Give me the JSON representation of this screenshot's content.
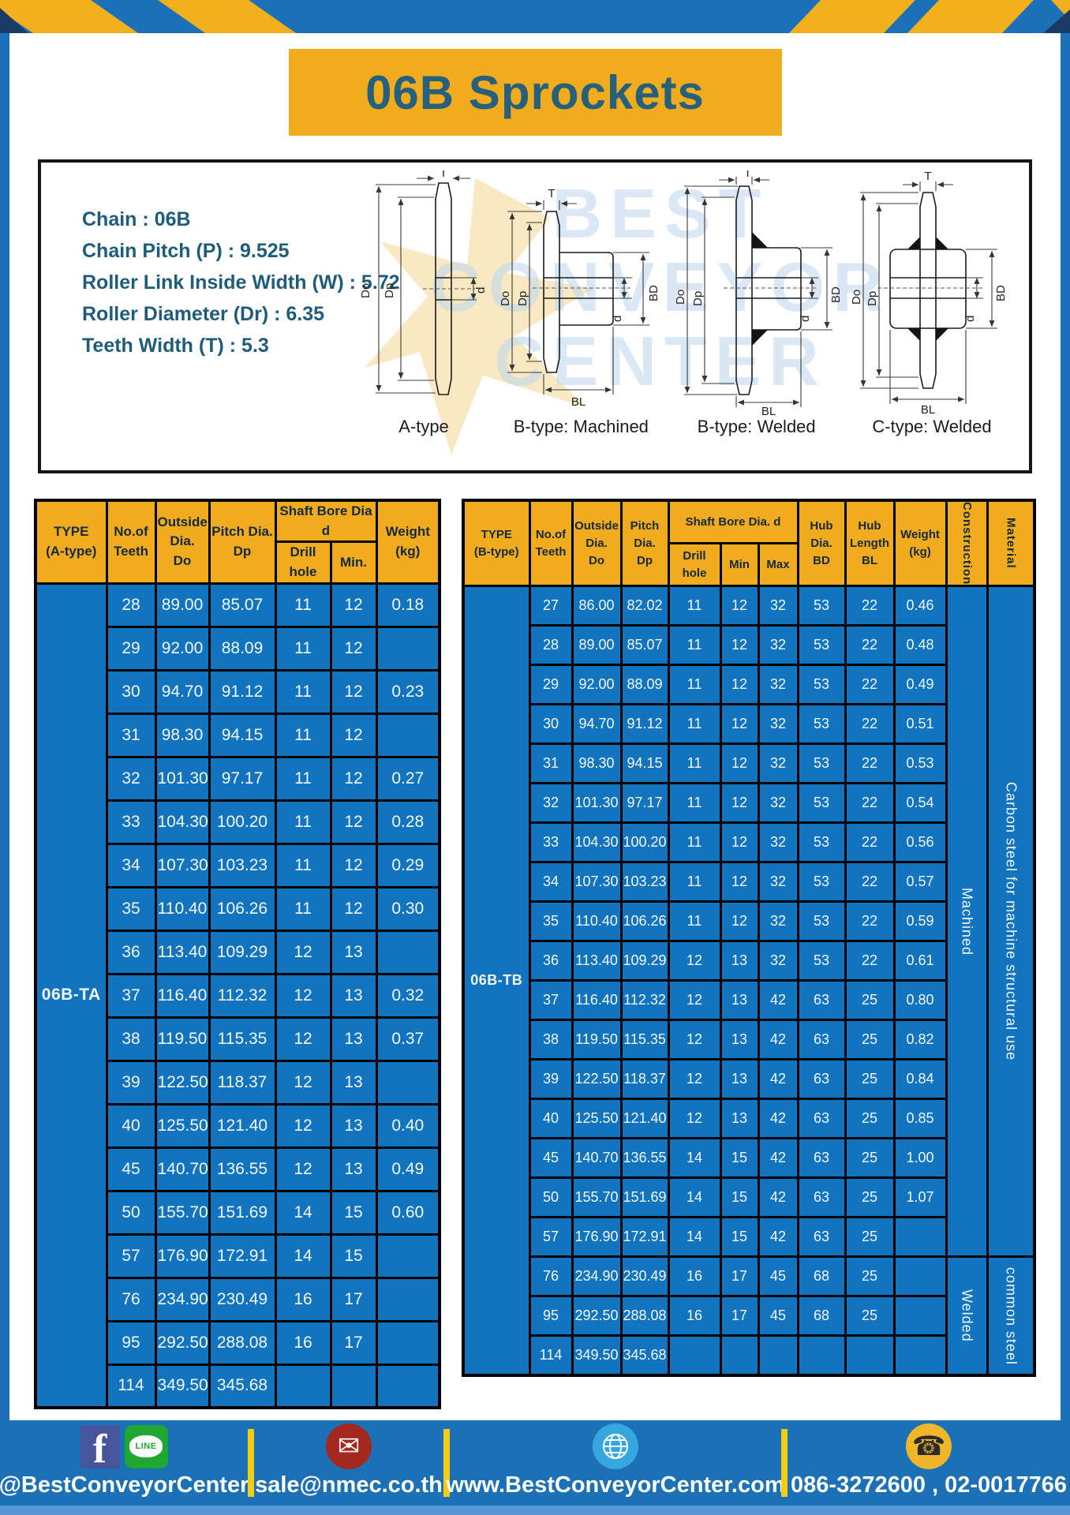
{
  "page": {
    "title": "06B Sprockets"
  },
  "colors": {
    "frame_blue": "#1B70B6",
    "accent_yellow": "#F1AC1D",
    "table_blue": "#1273BE",
    "teal_text": "#26607C"
  },
  "specs": {
    "lines": [
      "Chain : 06B",
      "Chain Pitch (P) : 9.525",
      "Roller Link Inside Width (W) : 5.72",
      "Roller Diameter (Dr) : 6.35",
      "Teeth Width (T) : 5.3"
    ]
  },
  "diagrams": {
    "captions": [
      "A-type",
      "B-type: Machined",
      "B-type: Welded",
      "C-type: Welded"
    ],
    "dim_labels": {
      "t": "T",
      "do_": "Do",
      "dp": "Dp",
      "d": "d",
      "bd": "BD",
      "bl": "BL"
    },
    "watermark": {
      "line1": "BEST",
      "line2": "CONVEYOR",
      "line3": "CENTER"
    }
  },
  "table_a": {
    "header": {
      "type": "TYPE\n(A-type)",
      "teeth": "No.of\nTeeth",
      "outside": "Outside\nDia.\nDo",
      "pitch": "Pitch Dia.\nDp",
      "shaft_bore": "Shaft Bore Dia d",
      "drill": "Drill hole",
      "min": "Min.",
      "weight": "Weight\n(kg)"
    },
    "type_label": "06B-TA",
    "rows": [
      [
        "28",
        "89.00",
        "85.07",
        "11",
        "12",
        "0.18"
      ],
      [
        "29",
        "92.00",
        "88.09",
        "11",
        "12",
        ""
      ],
      [
        "30",
        "94.70",
        "91.12",
        "11",
        "12",
        "0.23"
      ],
      [
        "31",
        "98.30",
        "94.15",
        "11",
        "12",
        ""
      ],
      [
        "32",
        "101.30",
        "97.17",
        "11",
        "12",
        "0.27"
      ],
      [
        "33",
        "104.30",
        "100.20",
        "11",
        "12",
        "0.28"
      ],
      [
        "34",
        "107.30",
        "103.23",
        "11",
        "12",
        "0.29"
      ],
      [
        "35",
        "110.40",
        "106.26",
        "11",
        "12",
        "0.30"
      ],
      [
        "36",
        "113.40",
        "109.29",
        "12",
        "13",
        ""
      ],
      [
        "37",
        "116.40",
        "112.32",
        "12",
        "13",
        "0.32"
      ],
      [
        "38",
        "119.50",
        "115.35",
        "12",
        "13",
        "0.37"
      ],
      [
        "39",
        "122.50",
        "118.37",
        "12",
        "13",
        ""
      ],
      [
        "40",
        "125.50",
        "121.40",
        "12",
        "13",
        "0.40"
      ],
      [
        "45",
        "140.70",
        "136.55",
        "12",
        "13",
        "0.49"
      ],
      [
        "50",
        "155.70",
        "151.69",
        "14",
        "15",
        "0.60"
      ],
      [
        "57",
        "176.90",
        "172.91",
        "14",
        "15",
        ""
      ],
      [
        "76",
        "234.90",
        "230.49",
        "16",
        "17",
        ""
      ],
      [
        "95",
        "292.50",
        "288.08",
        "16",
        "17",
        ""
      ],
      [
        "114",
        "349.50",
        "345.68",
        "",
        "",
        ""
      ]
    ]
  },
  "table_b": {
    "header": {
      "type": "TYPE\n(B-type)",
      "teeth": "No.of\nTeeth",
      "outside": "Outside\nDia.\nDo",
      "pitch": "Pitch\nDia.\nDp",
      "shaft_bore": "Shaft Bore Dia. d",
      "drill": "Drill hole",
      "min": "Min",
      "max": "Max",
      "hub_dia": "Hub\nDia.\nBD",
      "hub_len": "Hub\nLength\nBL",
      "weight": "Weight\n(kg)",
      "construction": "Construction",
      "material": "Material"
    },
    "type_label": "06B-TB",
    "rows": [
      [
        "27",
        "86.00",
        "82.02",
        "11",
        "12",
        "32",
        "53",
        "22",
        "0.46"
      ],
      [
        "28",
        "89.00",
        "85.07",
        "11",
        "12",
        "32",
        "53",
        "22",
        "0.48"
      ],
      [
        "29",
        "92.00",
        "88.09",
        "11",
        "12",
        "32",
        "53",
        "22",
        "0.49"
      ],
      [
        "30",
        "94.70",
        "91.12",
        "11",
        "12",
        "32",
        "53",
        "22",
        "0.51"
      ],
      [
        "31",
        "98.30",
        "94.15",
        "11",
        "12",
        "32",
        "53",
        "22",
        "0.53"
      ],
      [
        "32",
        "101.30",
        "97.17",
        "11",
        "12",
        "32",
        "53",
        "22",
        "0.54"
      ],
      [
        "33",
        "104.30",
        "100.20",
        "11",
        "12",
        "32",
        "53",
        "22",
        "0.56"
      ],
      [
        "34",
        "107.30",
        "103.23",
        "11",
        "12",
        "32",
        "53",
        "22",
        "0.57"
      ],
      [
        "35",
        "110.40",
        "106.26",
        "11",
        "12",
        "32",
        "53",
        "22",
        "0.59"
      ],
      [
        "36",
        "113.40",
        "109.29",
        "12",
        "13",
        "32",
        "53",
        "22",
        "0.61"
      ],
      [
        "37",
        "116.40",
        "112.32",
        "12",
        "13",
        "42",
        "63",
        "25",
        "0.80"
      ],
      [
        "38",
        "119.50",
        "115.35",
        "12",
        "13",
        "42",
        "63",
        "25",
        "0.82"
      ],
      [
        "39",
        "122.50",
        "118.37",
        "12",
        "13",
        "42",
        "63",
        "25",
        "0.84"
      ],
      [
        "40",
        "125.50",
        "121.40",
        "12",
        "13",
        "42",
        "63",
        "25",
        "0.85"
      ],
      [
        "45",
        "140.70",
        "136.55",
        "14",
        "15",
        "42",
        "63",
        "25",
        "1.00"
      ],
      [
        "50",
        "155.70",
        "151.69",
        "14",
        "15",
        "42",
        "63",
        "25",
        "1.07"
      ],
      [
        "57",
        "176.90",
        "172.91",
        "14",
        "15",
        "42",
        "63",
        "25",
        ""
      ],
      [
        "76",
        "234.90",
        "230.49",
        "16",
        "17",
        "45",
        "68",
        "25",
        ""
      ],
      [
        "95",
        "292.50",
        "288.08",
        "16",
        "17",
        "45",
        "68",
        "25",
        ""
      ],
      [
        "114",
        "349.50",
        "345.68",
        "",
        "",
        "",
        "",
        "",
        ""
      ]
    ],
    "sections": [
      {
        "start": 0,
        "count": 17,
        "construction": "Machined",
        "material": "Carbon steel for machine structural use"
      },
      {
        "start": 17,
        "count": 3,
        "construction": "Welded",
        "material": "common steel"
      }
    ]
  },
  "footer": {
    "social_label": "@BestConveyorCenter",
    "line_label": "LINE",
    "facebook_glyph": "f",
    "email": "sale@nmec.co.th",
    "website": "www.BestConveyorCenter.com",
    "phone": "086-3272600 , 02-0017766",
    "email_glyph": "✉",
    "phone_glyph": "☎"
  }
}
